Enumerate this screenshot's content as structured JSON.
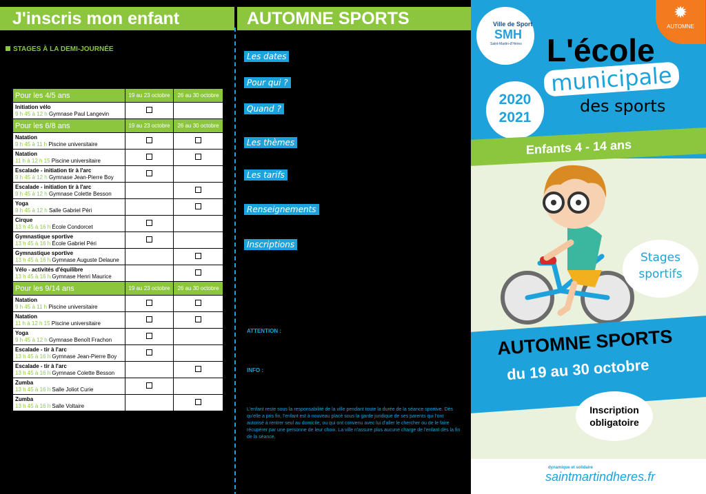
{
  "left": {
    "title": "J'inscris mon enfant",
    "subhead": "STAGES À LA DEMI-JOURNÉE",
    "groups": [
      {
        "label": "Pour les 4/5 ans",
        "col1": "19 au 23 octobre",
        "col2": "26 au 30 octobre",
        "rows": [
          {
            "activity": "Initiation vélo",
            "time": "9 h 45 à 12 h",
            "place": "Gymnase Paul Langevin",
            "c1": true,
            "c2": false
          }
        ]
      },
      {
        "label": "Pour les 6/8 ans",
        "col1": "19 au 23 octobre",
        "col2": "26 au 30 octobre",
        "rows": [
          {
            "activity": "Natation",
            "time": "9 h 45 à 11 h",
            "place": "Piscine universitaire",
            "c1": true,
            "c2": true
          },
          {
            "activity": "Natation",
            "time": "11 h à 12 h 15",
            "place": "Piscine universitaire",
            "c1": true,
            "c2": true
          },
          {
            "activity": "Escalade - initiation tir à l'arc",
            "time": "9 h 45 à 12 h",
            "place": "Gymnase Jean-Pierre Boy",
            "c1": true,
            "c2": false
          },
          {
            "activity": "Escalade - initiation tir à l'arc",
            "time": "9 h 45 à 12 h",
            "place": "Gymnase Colette Besson",
            "c1": false,
            "c2": true
          },
          {
            "activity": "Yoga",
            "time": "9 h 45 à 12 h",
            "place": "Salle Gabriel Péri",
            "c1": false,
            "c2": true
          },
          {
            "activity": "Cirque",
            "time": "13 h 45 à 16 h",
            "place": "École Condorcet",
            "c1": true,
            "c2": false
          },
          {
            "activity": "Gymnastique sportive",
            "time": "13 h 45 à 16 h",
            "place": "École Gabriel Péri",
            "c1": true,
            "c2": false
          },
          {
            "activity": "Gymnastique sportive",
            "time": "13 h 45 à 16 h",
            "place": "Gymnase Auguste Delaune",
            "c1": false,
            "c2": true
          },
          {
            "activity": "Vélo - activités d'équilibre",
            "time": "13 h 45 à 16 h",
            "place": "Gymnase Henri Maurice",
            "c1": false,
            "c2": true
          }
        ]
      },
      {
        "label": "Pour les 9/14 ans",
        "col1": "19 au 23 octobre",
        "col2": "26 au 30 octobre",
        "rows": [
          {
            "activity": "Natation",
            "time": "9 h 45 à 11 h",
            "place": "Piscine universitaire",
            "c1": true,
            "c2": true
          },
          {
            "activity": "Natation",
            "time": "11 h à 12 h 15",
            "place": "Piscine universitaire",
            "c1": true,
            "c2": true
          },
          {
            "activity": "Yoga",
            "time": "9 h 45 à 12 h",
            "place": "Gymnase Benoît Frachon",
            "c1": true,
            "c2": false
          },
          {
            "activity": "Escalade - tir à l'arc",
            "time": "13 h 45 à 16 h",
            "place": "Gymnase Jean-Pierre Boy",
            "c1": true,
            "c2": false
          },
          {
            "activity": "Escalade - tir à l'arc",
            "time": "13 h 45 à 16 h",
            "place": "Gymnase Colette Besson",
            "c1": false,
            "c2": true
          },
          {
            "activity": "Zumba",
            "time": "13 h 45 à 16 h",
            "place": "Salle Joliot Curie",
            "c1": true,
            "c2": false
          },
          {
            "activity": "Zumba",
            "time": "13 h 45 à 16 h",
            "place": "Salle Voltaire",
            "c1": false,
            "c2": true
          }
        ]
      }
    ]
  },
  "middle": {
    "title": "AUTOMNE SPORTS",
    "labels": [
      "Les dates",
      "Pour qui ?",
      "Quand ?",
      "Les thèmes",
      "Les tarifs",
      "Renseignements",
      "Inscriptions"
    ],
    "attention": "ATTENTION :",
    "info": "INFO :",
    "disclaimer": "L'enfant reste sous la responsabilité de la ville pendant toute la durée de la séance sportive. Dès qu'elle a pris fin, l'enfant est à nouveau placé sous la garde juridique de ses parents qui l'ont autorisé à rentrer seul au domicile, ou qui ont convenu avec lui d'aller le chercher ou de le faire récupérer par une personne de leur choix. La ville n'assure plus aucune charge de l'enfant dès la fin de la séance."
  },
  "right": {
    "logo_top": "Ville de Sport",
    "logo_main": "SMH",
    "logo_sub": "Saint-Martin-d'Hères",
    "season": "AUTOMNE",
    "year1": "2020",
    "year2": "2021",
    "title1": "L'école",
    "title2": "municipale",
    "title3": "des sports",
    "ages": "Enfants 4 - 14 ans",
    "stages1": "Stages",
    "stages2": "sportifs",
    "event": "AUTOMNE SPORTS",
    "dates": "du 19 au 30 octobre",
    "insc1": "Inscription",
    "insc2": "obligatoire",
    "tagline": "dynamique et solidaire",
    "site": "saintmartindheres.fr",
    "colors": {
      "green": "#8cc63f",
      "blue": "#1ea2dc",
      "orange": "#f47a20"
    }
  }
}
